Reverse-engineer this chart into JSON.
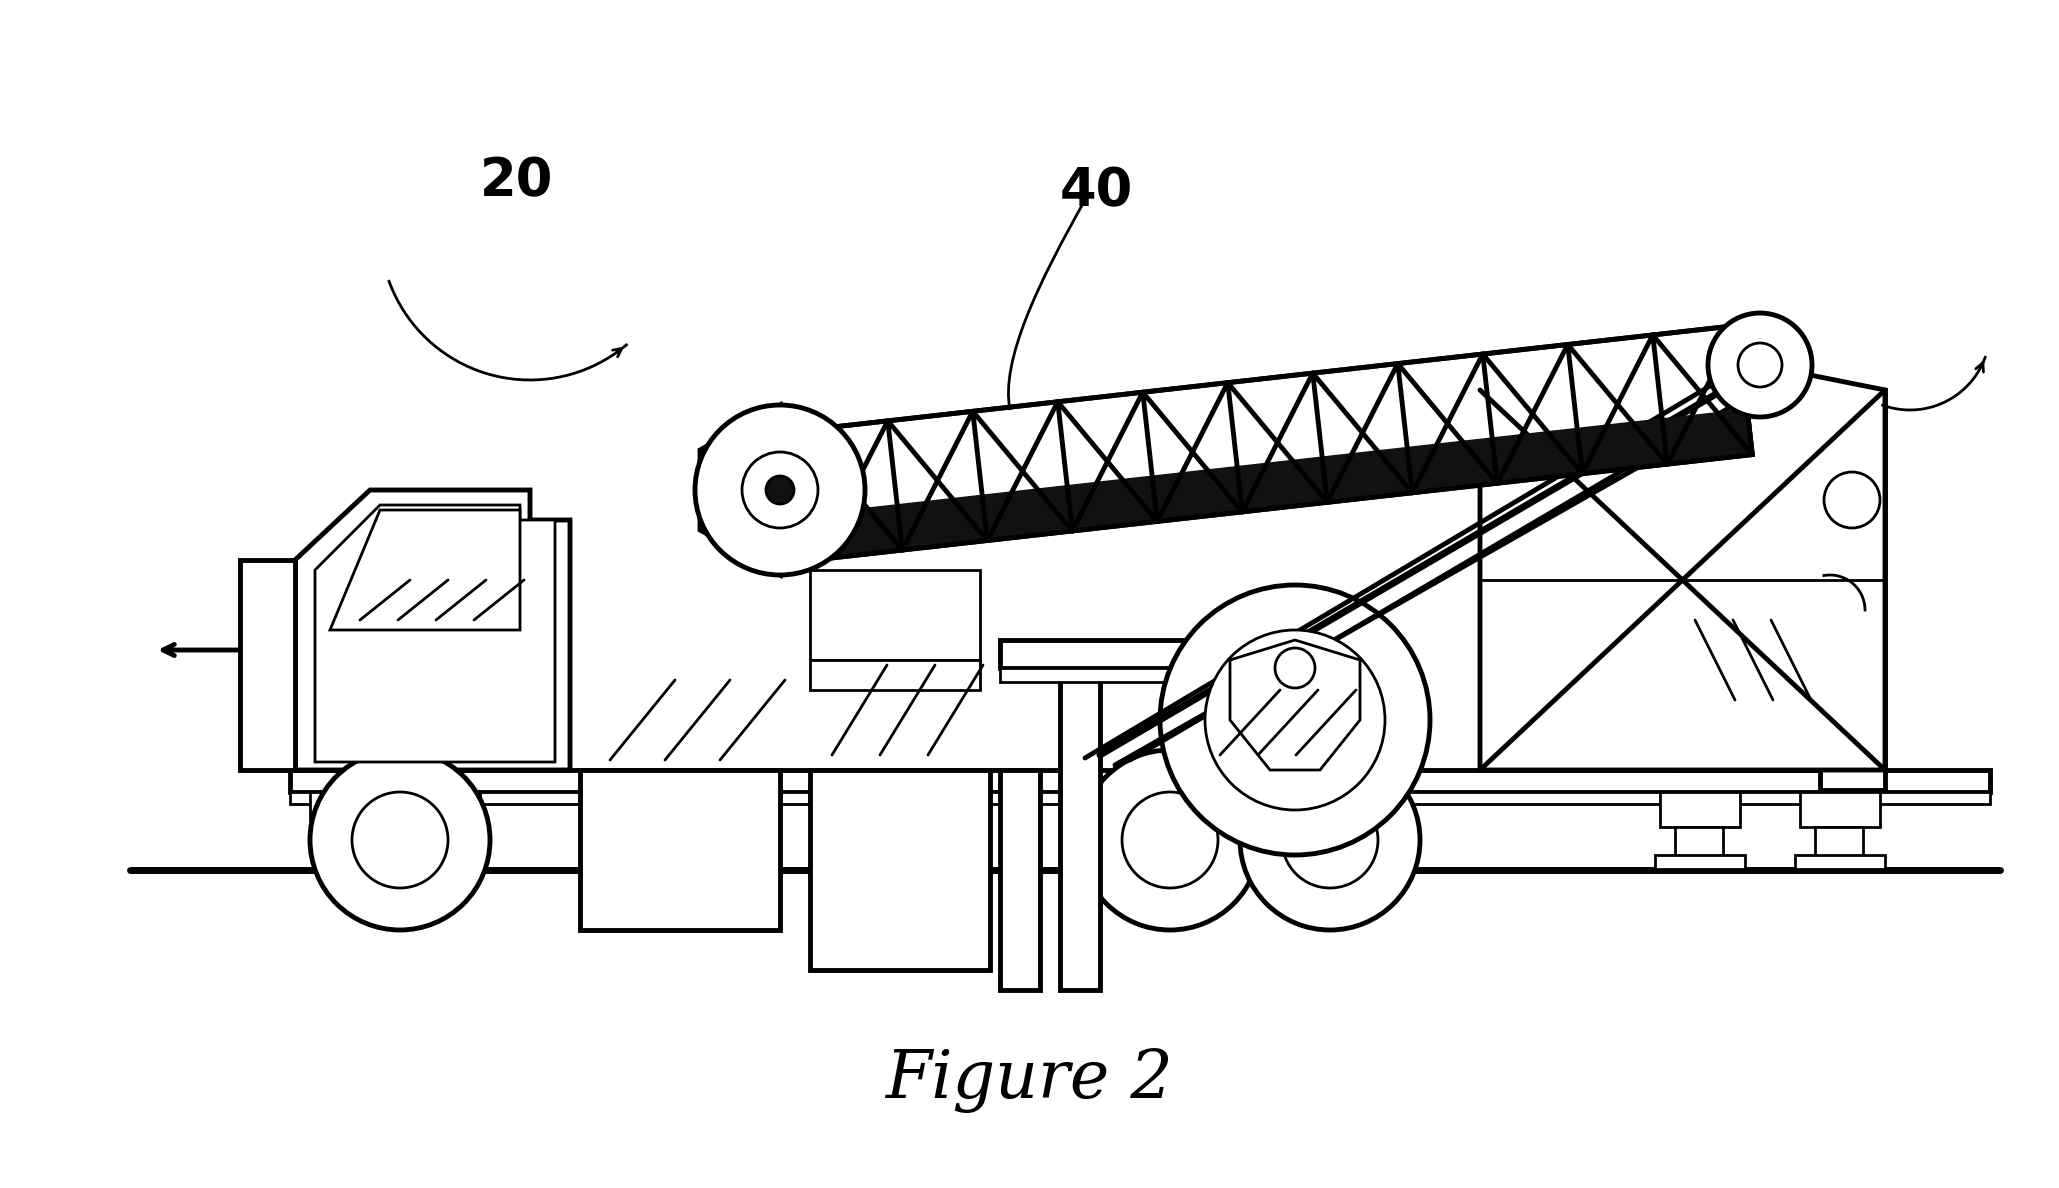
{
  "figure_label": "Figure 2",
  "label_20": "20",
  "label_40": "40",
  "bg_color": "#ffffff",
  "line_color": "#000000",
  "dark_fill": "#111111",
  "fig_width": 20.59,
  "fig_height": 11.88,
  "dpi": 100
}
